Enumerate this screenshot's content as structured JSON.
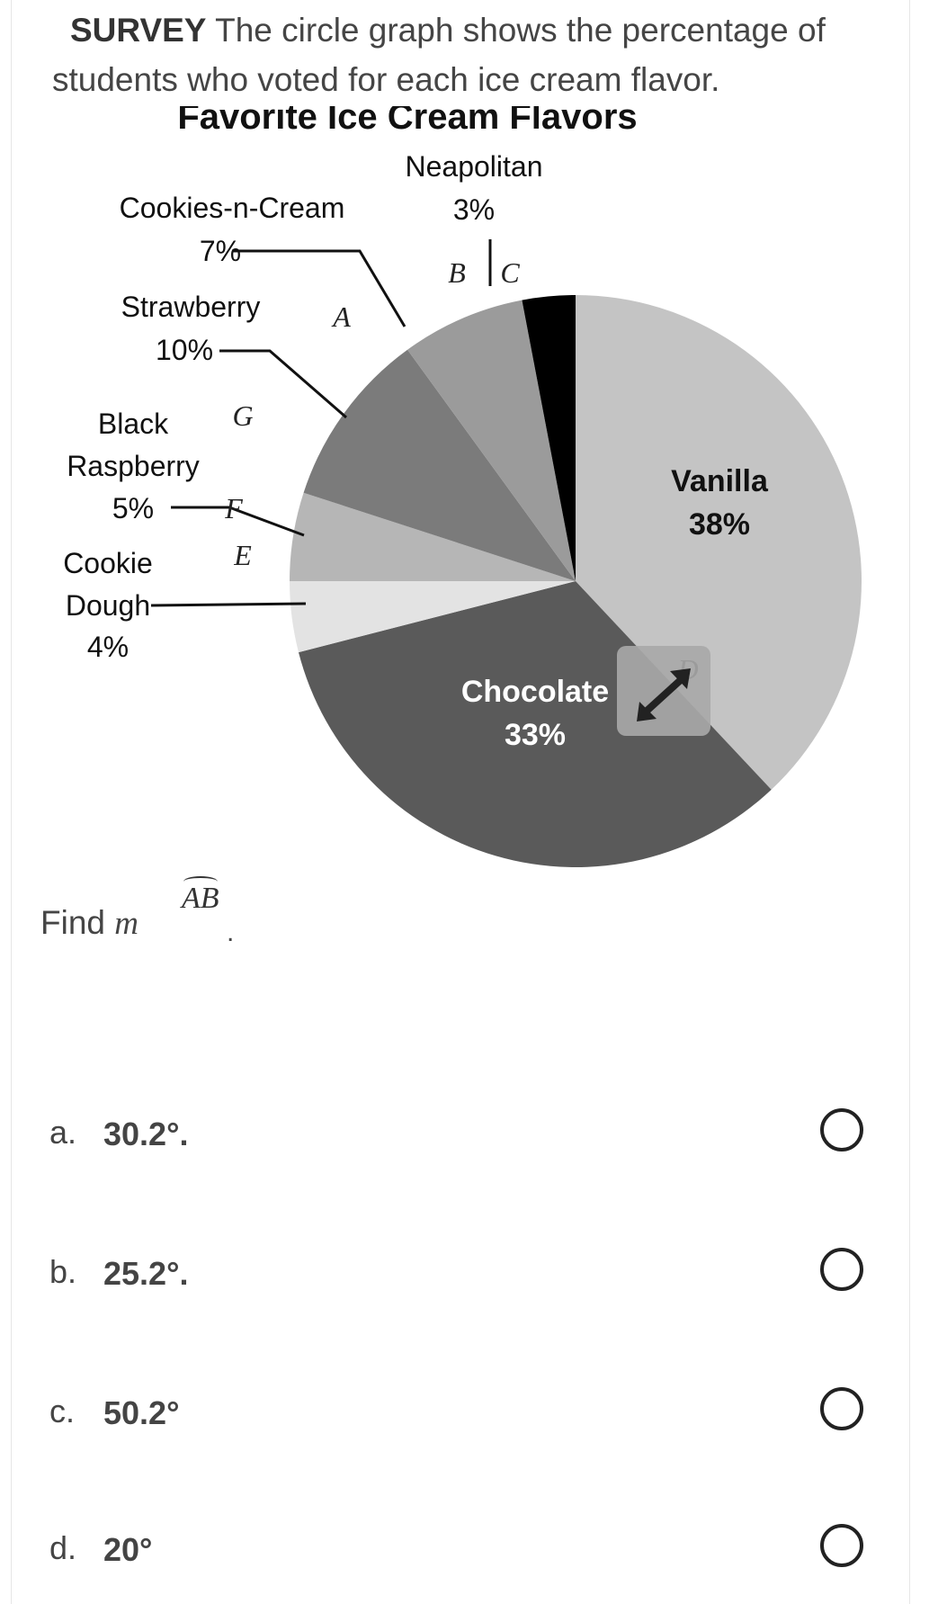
{
  "question": {
    "subject": "SURVEY",
    "text": "The circle graph shows the percentage of students who voted for each ice cream flavor."
  },
  "chart_data": {
    "type": "pie",
    "title": "Favorite Ice Cream Flavors",
    "slices": [
      {
        "name": "Vanilla",
        "value": 38,
        "label": "38%",
        "color": "#c4c4c4"
      },
      {
        "name": "Chocolate",
        "value": 33,
        "label": "33%",
        "color": "#5a5a5a"
      },
      {
        "name": "Cookie Dough",
        "value": 4,
        "label": "4%",
        "color": "#e3e3e3"
      },
      {
        "name": "Black Raspberry",
        "value": 5,
        "label": "5%",
        "color": "#b6b6b6"
      },
      {
        "name": "Strawberry",
        "value": 10,
        "label": "10%",
        "color": "#7b7b7b"
      },
      {
        "name": "Cookies-n-Cream",
        "value": 7,
        "label": "7%",
        "color": "#9b9b9b"
      },
      {
        "name": "Neapolitan",
        "value": 3,
        "label": "3%",
        "color": "#000000"
      }
    ],
    "point_labels": [
      "A",
      "B",
      "C",
      "D",
      "E",
      "F",
      "G"
    ]
  },
  "prompt": {
    "find": "Find",
    "variable": "m",
    "arc": "AB",
    "period": "."
  },
  "options": [
    {
      "letter": "a.",
      "text": "30.2°."
    },
    {
      "letter": "b.",
      "text": "25.2°."
    },
    {
      "letter": "c.",
      "text": "50.2°"
    },
    {
      "letter": "d.",
      "text": "20°"
    }
  ],
  "icons": {
    "expand": "expand-arrows-icon"
  }
}
